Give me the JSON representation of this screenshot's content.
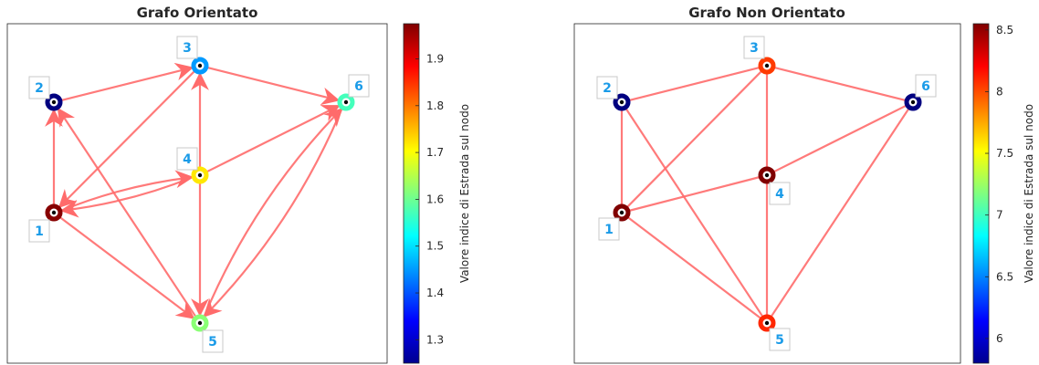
{
  "panels": [
    {
      "title": "Grafo Orientato",
      "directed": true,
      "colorbar": {
        "label": "Valore indice di Estrada sul nodo",
        "min": 1.25,
        "max": 1.975,
        "ticks": [
          "1.3",
          "1.4",
          "1.5",
          "1.6",
          "1.7",
          "1.8",
          "1.9"
        ],
        "tick_values": [
          1.3,
          1.4,
          1.5,
          1.6,
          1.7,
          1.8,
          1.9
        ]
      },
      "nodes": [
        {
          "id": "1",
          "value": 1.97
        },
        {
          "id": "2",
          "value": 1.25
        },
        {
          "id": "3",
          "value": 1.45
        },
        {
          "id": "4",
          "value": 1.72
        },
        {
          "id": "5",
          "value": 1.62
        },
        {
          "id": "6",
          "value": 1.57
        }
      ],
      "edges": [
        {
          "from": "1",
          "to": "2"
        },
        {
          "from": "2",
          "to": "3"
        },
        {
          "from": "3",
          "to": "1"
        },
        {
          "from": "1",
          "to": "4"
        },
        {
          "from": "4",
          "to": "1"
        },
        {
          "from": "4",
          "to": "3"
        },
        {
          "from": "3",
          "to": "6"
        },
        {
          "from": "4",
          "to": "6"
        },
        {
          "from": "4",
          "to": "5"
        },
        {
          "from": "1",
          "to": "5"
        },
        {
          "from": "5",
          "to": "2"
        },
        {
          "from": "6",
          "to": "5"
        },
        {
          "from": "5",
          "to": "6"
        }
      ]
    },
    {
      "title": "Grafo Non Orientato",
      "directed": false,
      "colorbar": {
        "label": "Valore indice di Estrada sul nodo",
        "min": 5.8,
        "max": 8.55,
        "ticks": [
          "6",
          "6.5",
          "7",
          "7.5",
          "8",
          "8.5"
        ],
        "tick_values": [
          6,
          6.5,
          7,
          7.5,
          8,
          8.5
        ]
      },
      "nodes": [
        {
          "id": "1",
          "value": 8.55
        },
        {
          "id": "2",
          "value": 5.8
        },
        {
          "id": "3",
          "value": 8.05
        },
        {
          "id": "4",
          "value": 8.55
        },
        {
          "id": "5",
          "value": 8.1
        },
        {
          "id": "6",
          "value": 5.8
        }
      ],
      "edges": [
        {
          "from": "1",
          "to": "2"
        },
        {
          "from": "1",
          "to": "3"
        },
        {
          "from": "1",
          "to": "4"
        },
        {
          "from": "1",
          "to": "5"
        },
        {
          "from": "2",
          "to": "3"
        },
        {
          "from": "2",
          "to": "5"
        },
        {
          "from": "3",
          "to": "4"
        },
        {
          "from": "3",
          "to": "6"
        },
        {
          "from": "4",
          "to": "5"
        },
        {
          "from": "4",
          "to": "6"
        },
        {
          "from": "5",
          "to": "6"
        }
      ]
    }
  ],
  "colors": {
    "edge": "#ff6b6b",
    "label_text": "#1a9be8",
    "axes_border": "#262626"
  }
}
